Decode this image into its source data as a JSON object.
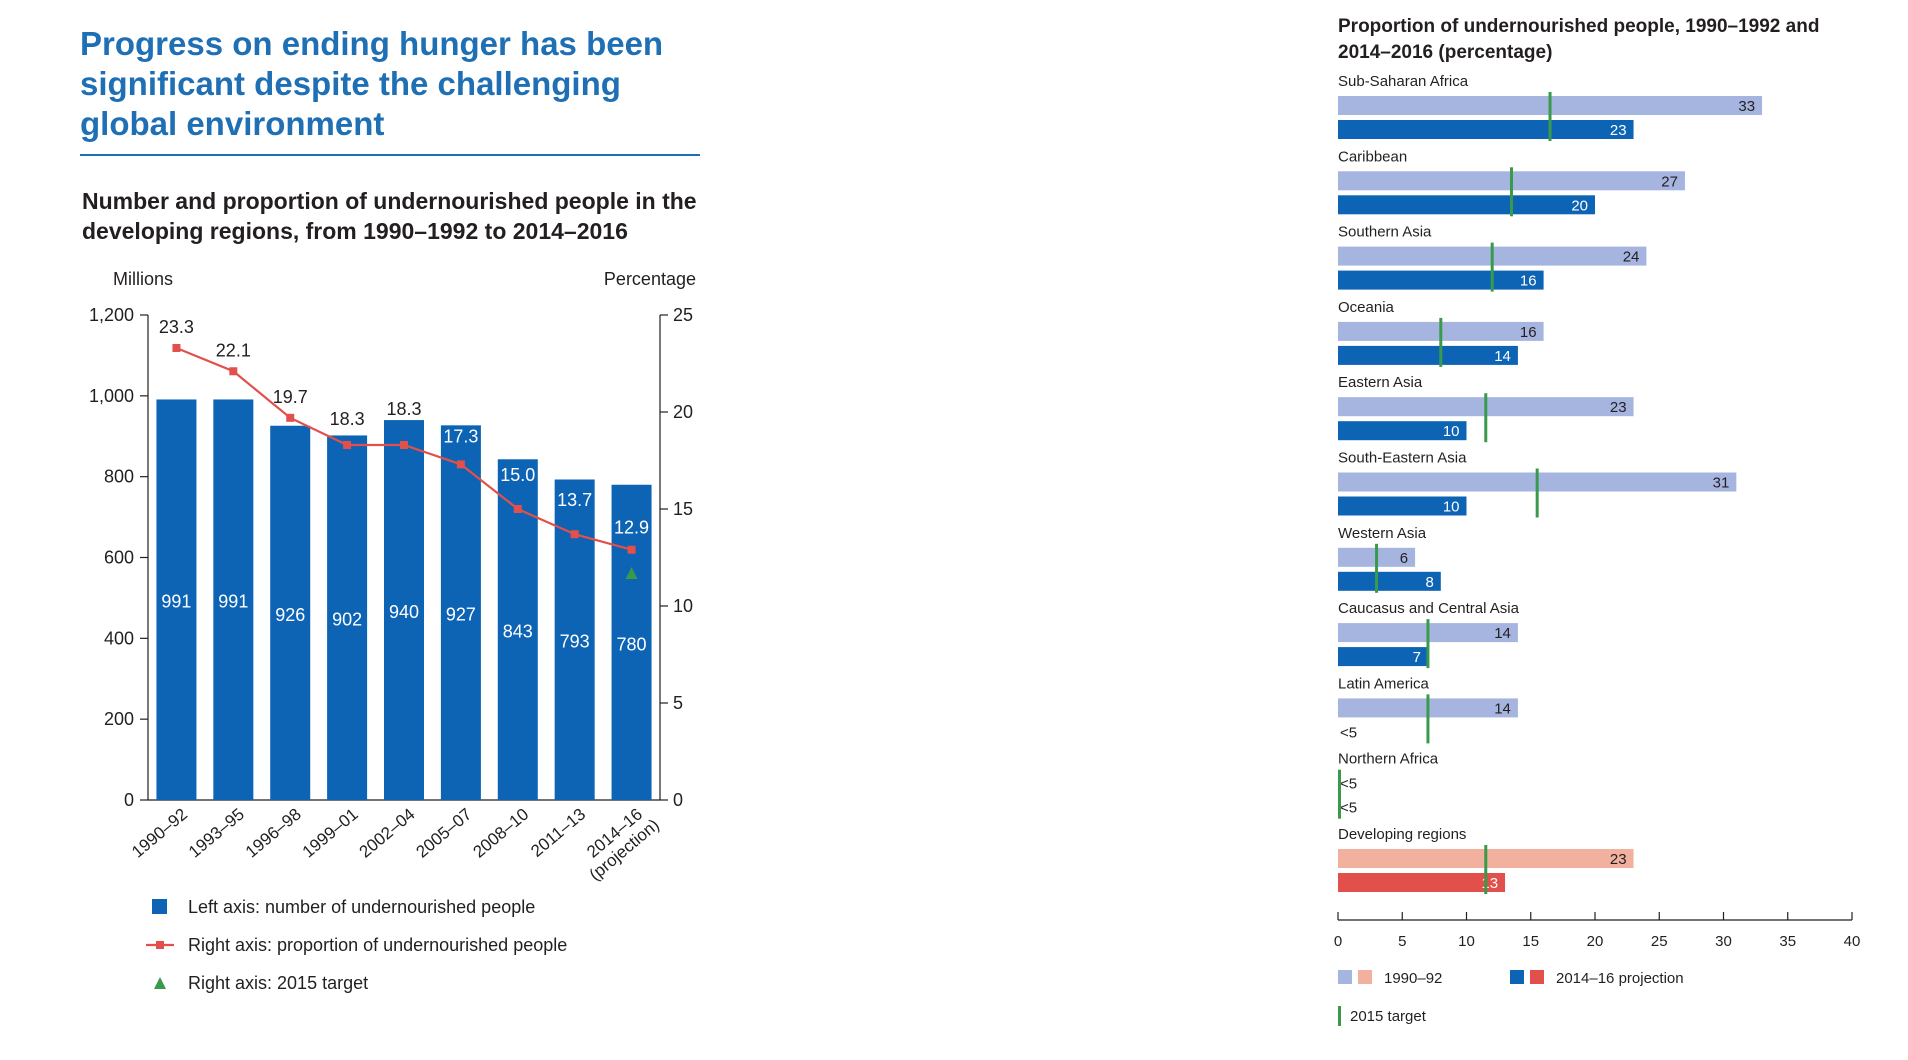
{
  "headline": "Progress on ending hunger has been significant despite the challenging global environment",
  "colors": {
    "bar_blue": "#0d63b4",
    "light_blue": "#a6b4e0",
    "line_red": "#e2504c",
    "target_green": "#3a9a4c",
    "dev_light": "#f2b09f",
    "dev_dark": "#e2504c",
    "headline_blue": "#1f6fb5"
  },
  "chart_data": [
    {
      "type": "bar",
      "title": "Number and proportion of undernourished people in the developing regions, from 1990–1992 to 2014–2016",
      "ylabel": "Millions",
      "y2label": "Percentage",
      "ylim": [
        0,
        1200
      ],
      "y2lim": [
        0,
        25
      ],
      "yticks": [
        "0",
        "200",
        "400",
        "600",
        "800",
        "1,000",
        "1,200"
      ],
      "y2ticks": [
        "0",
        "5",
        "10",
        "15",
        "20",
        "25"
      ],
      "categories": [
        "1990–92",
        "1993–95",
        "1996–98",
        "1999–01",
        "2002–04",
        "2005–07",
        "2008–10",
        "2011–13",
        "2014–16 (projection)"
      ],
      "series": [
        {
          "name": "Left axis: number of undernourished people",
          "type": "bar",
          "axis": "left",
          "values": [
            991,
            991,
            926,
            902,
            940,
            927,
            843,
            793,
            780
          ]
        },
        {
          "name": "Right axis: proportion of undernourished people",
          "type": "line",
          "axis": "right",
          "values": [
            23.3,
            22.1,
            19.7,
            18.3,
            18.3,
            17.3,
            15.0,
            13.7,
            12.9
          ],
          "labels": [
            "23.3",
            "22.1",
            "19.7",
            "18.3",
            "18.3",
            "17.3",
            "15.0",
            "13.7",
            "12.9"
          ]
        },
        {
          "name": "Right axis: 2015 target",
          "type": "scatter",
          "axis": "right",
          "points": [
            {
              "category": "2014–16 (projection)",
              "value": 11.7
            }
          ]
        }
      ],
      "legend_position": "bottom"
    },
    {
      "type": "bar",
      "orientation": "horizontal",
      "title": "Proportion of undernourished people, 1990–1992 and 2014–2016 (percentage)",
      "xlim": [
        0,
        40
      ],
      "xticks": [
        "0",
        "5",
        "10",
        "15",
        "20",
        "25",
        "30",
        "35",
        "40"
      ],
      "regions": [
        {
          "name": "Sub-Saharan Africa",
          "v1990": 33,
          "v2014": 23,
          "label1990": "33",
          "label2014": "23",
          "target": 16.5
        },
        {
          "name": "Caribbean",
          "v1990": 27,
          "v2014": 20,
          "label1990": "27",
          "label2014": "20",
          "target": 13.5
        },
        {
          "name": "Southern Asia",
          "v1990": 24,
          "v2014": 16,
          "label1990": "24",
          "label2014": "16",
          "target": 12
        },
        {
          "name": "Oceania",
          "v1990": 16,
          "v2014": 14,
          "label1990": "16",
          "label2014": "14",
          "target": 8
        },
        {
          "name": "Eastern Asia",
          "v1990": 23,
          "v2014": 10,
          "label1990": "23",
          "label2014": "10",
          "target": 11.5
        },
        {
          "name": "South-Eastern Asia",
          "v1990": 31,
          "v2014": 10,
          "label1990": "31",
          "label2014": "10",
          "target": 15.5
        },
        {
          "name": "Western Asia",
          "v1990": 6,
          "v2014": 8,
          "label1990": "6",
          "label2014": "8",
          "target": 3
        },
        {
          "name": "Caucasus and Central Asia",
          "v1990": 14,
          "v2014": 7,
          "label1990": "14",
          "label2014": "7",
          "target": 7
        },
        {
          "name": "Latin America",
          "v1990": 14,
          "v2014": 0,
          "label1990": "14",
          "label2014": "<5",
          "target": 7
        },
        {
          "name": "Northern Africa",
          "v1990": 0,
          "v2014": 0,
          "label1990": "<5",
          "label2014": "<5",
          "target": 0
        },
        {
          "name": "Developing regions",
          "v1990": 23,
          "v2014": 13,
          "label1990": "23",
          "label2014": "13",
          "target": 11.5,
          "highlight": true
        }
      ],
      "legend": [
        {
          "name": "1990–92",
          "colors": [
            "#a6b4e0",
            "#f2b09f"
          ]
        },
        {
          "name": "2014–16 projection",
          "colors": [
            "#0d63b4",
            "#e2504c"
          ]
        },
        {
          "name": "2015 target",
          "colors": [
            "#3a9a4c"
          ]
        }
      ],
      "legend_position": "bottom"
    }
  ]
}
